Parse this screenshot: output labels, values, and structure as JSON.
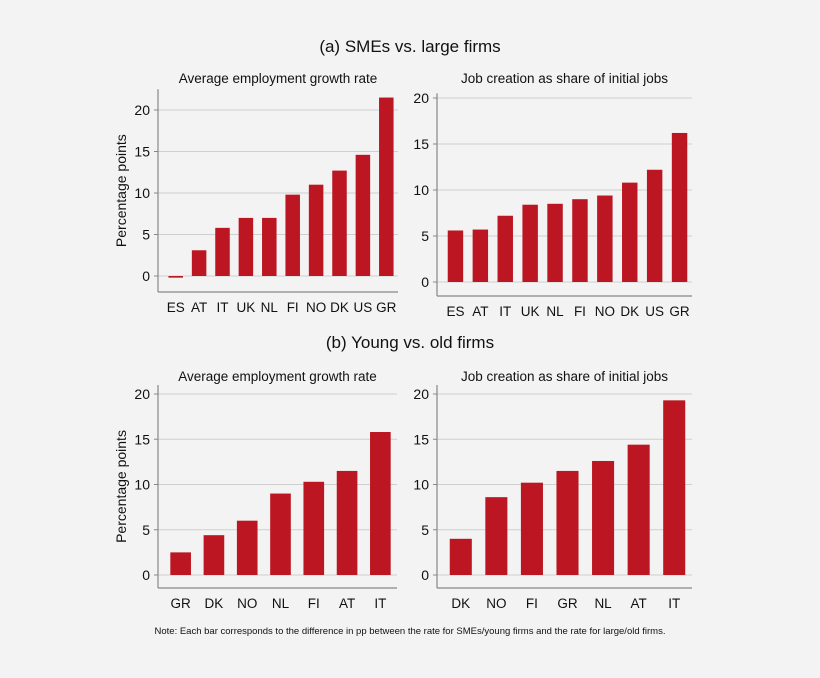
{
  "sections": [
    {
      "title": "(a) SMEs vs. large firms"
    },
    {
      "title": "(b) Young vs. old firms"
    }
  ],
  "note": "Note: Each bar corresponds to the difference in pp between the rate for SMEs/young firms and the rate for large/old firms.",
  "colors": {
    "bar": "#bb1622",
    "grid": "#cfcfcf",
    "axis": "#888888"
  },
  "chart_data": [
    {
      "type": "bar",
      "section": "(a) SMEs vs. large firms",
      "title": "Average employment growth rate",
      "ylabel": "Percentage points",
      "categories": [
        "ES",
        "AT",
        "IT",
        "UK",
        "NL",
        "FI",
        "NO",
        "DK",
        "US",
        "GR"
      ],
      "values": [
        -0.2,
        3.1,
        5.8,
        7.0,
        7.0,
        9.8,
        11.0,
        12.7,
        14.6,
        21.5
      ],
      "yticks": [
        0,
        5,
        10,
        15,
        20
      ],
      "ylim": [
        -1.5,
        22.5
      ],
      "grid": true
    },
    {
      "type": "bar",
      "section": "(a) SMEs vs. large firms",
      "title": "Job creation as share of initial jobs",
      "ylabel": "",
      "categories": [
        "ES",
        "AT",
        "IT",
        "UK",
        "NL",
        "FI",
        "NO",
        "DK",
        "US",
        "GR"
      ],
      "values": [
        5.6,
        5.7,
        7.2,
        8.4,
        8.5,
        9.0,
        9.4,
        10.8,
        12.2,
        16.2
      ],
      "yticks": [
        0,
        5,
        10,
        15,
        20
      ],
      "ylim": [
        -1,
        20.5
      ],
      "grid": true
    },
    {
      "type": "bar",
      "section": "(b) Young vs. old firms",
      "title": "Average employment growth rate",
      "ylabel": "Percentage points",
      "categories": [
        "GR",
        "DK",
        "NO",
        "NL",
        "FI",
        "AT",
        "IT"
      ],
      "values": [
        2.5,
        4.4,
        6.0,
        9.0,
        10.3,
        11.5,
        15.8
      ],
      "yticks": [
        0,
        5,
        10,
        15,
        20
      ],
      "ylim": [
        -1,
        21
      ],
      "grid": true
    },
    {
      "type": "bar",
      "section": "(b) Young vs. old firms",
      "title": "Job creation as share of initial jobs",
      "ylabel": "",
      "categories": [
        "DK",
        "NO",
        "FI",
        "GR",
        "NL",
        "AT",
        "IT"
      ],
      "values": [
        4.0,
        8.6,
        10.2,
        11.5,
        12.6,
        14.4,
        19.3
      ],
      "yticks": [
        0,
        5,
        10,
        15,
        20
      ],
      "ylim": [
        -1,
        21
      ],
      "grid": true
    }
  ]
}
